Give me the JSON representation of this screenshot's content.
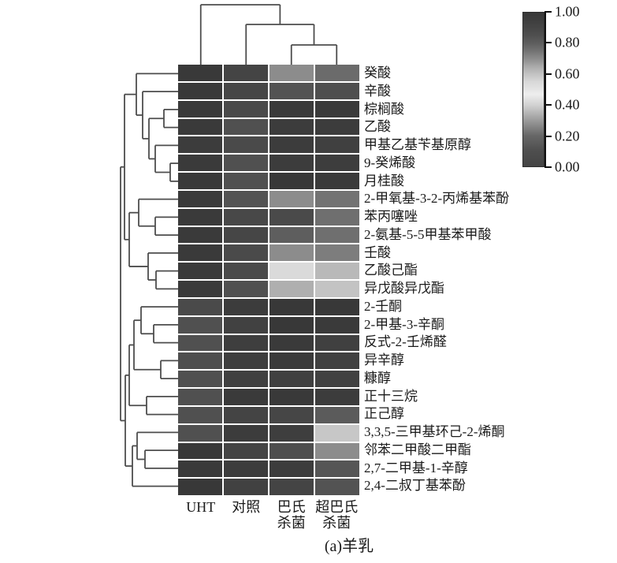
{
  "figure": {
    "caption": "(a)羊乳"
  },
  "chart_data": {
    "type": "heatmap",
    "title": "",
    "columns": [
      {
        "label": "UHT",
        "lines": [
          "UHT"
        ]
      },
      {
        "label": "对照",
        "lines": [
          "对照"
        ]
      },
      {
        "label": "巴氏杀菌",
        "lines": [
          "巴氏",
          "杀菌"
        ]
      },
      {
        "label": "超巴氏杀菌",
        "lines": [
          "超巴氏",
          "杀菌"
        ]
      }
    ],
    "rows": [
      "癸酸",
      "辛酸",
      "棕榈酸",
      "乙酸",
      "甲基乙基苄基原醇",
      "9-癸烯酸",
      "月桂酸",
      "2-甲氧基-3-2-丙烯基苯酚",
      "苯丙噻唑",
      "2-氨基-5-5甲基苯甲酸",
      "壬酸",
      "乙酸己酯",
      "异戊酸异戊酯",
      "2-壬酮",
      "2-甲基-3-辛酮",
      "反式-2-壬烯醛",
      "异辛醇",
      "糠醇",
      "正十三烷",
      "正己醇",
      "3,3,5-三甲基环己-2-烯酮",
      "邻苯二甲酸二甲酯",
      "2,7-二甲基-1-辛醇",
      "2,4-二叔丁基苯酚"
    ],
    "values": [
      [
        0.99,
        0.91,
        0.7,
        0.77
      ],
      [
        0.99,
        0.9,
        0.84,
        0.86
      ],
      [
        0.98,
        0.88,
        0.98,
        0.98
      ],
      [
        0.98,
        0.85,
        0.97,
        0.97
      ],
      [
        0.97,
        0.88,
        0.97,
        0.94
      ],
      [
        0.98,
        0.85,
        0.97,
        0.96
      ],
      [
        0.99,
        0.85,
        1.0,
        0.98
      ],
      [
        0.98,
        0.84,
        0.7,
        0.75
      ],
      [
        0.98,
        0.89,
        0.88,
        0.76
      ],
      [
        0.98,
        0.9,
        0.8,
        0.76
      ],
      [
        0.98,
        0.88,
        0.7,
        0.73
      ],
      [
        0.98,
        0.88,
        0.54,
        0.62
      ],
      [
        0.98,
        0.85,
        0.64,
        0.6
      ],
      [
        0.88,
        0.97,
        1.0,
        1.0
      ],
      [
        0.85,
        0.93,
        1.0,
        0.98
      ],
      [
        0.85,
        0.95,
        0.98,
        0.94
      ],
      [
        0.86,
        0.95,
        0.98,
        0.94
      ],
      [
        0.85,
        0.94,
        0.94,
        0.93
      ],
      [
        0.85,
        0.98,
        0.99,
        0.97
      ],
      [
        0.85,
        0.91,
        0.9,
        0.81
      ],
      [
        0.85,
        0.97,
        0.95,
        0.59
      ],
      [
        1.0,
        0.91,
        0.86,
        0.7
      ],
      [
        0.98,
        0.97,
        0.97,
        0.83
      ],
      [
        1.0,
        0.93,
        0.91,
        0.84
      ]
    ],
    "value_range": [
      0,
      1
    ],
    "grid": false,
    "legend_position": "right-colorbar",
    "colorbar": {
      "ticks": [
        "1.00",
        "0.80",
        "0.60",
        "0.40",
        "0.20",
        "0.00"
      ],
      "tick_values": [
        1.0,
        0.8,
        0.6,
        0.4,
        0.2,
        0.0
      ],
      "min": 0.0,
      "max": 1.0
    },
    "colormap_stops": [
      [
        0.0,
        "#444444"
      ],
      [
        0.1,
        "#4e4e4e"
      ],
      [
        0.2,
        "#676767"
      ],
      [
        0.3,
        "#9b9b9b"
      ],
      [
        0.4,
        "#d2d2d2"
      ],
      [
        0.47,
        "#eeeeee"
      ],
      [
        0.5,
        "#e4e4e4"
      ],
      [
        0.55,
        "#d8d8d8"
      ],
      [
        0.6,
        "#c3c3c3"
      ],
      [
        0.65,
        "#aaaaaa"
      ],
      [
        0.7,
        "#8c8c8c"
      ],
      [
        0.75,
        "#737373"
      ],
      [
        0.8,
        "#5e5e5e"
      ],
      [
        0.85,
        "#505050"
      ],
      [
        0.9,
        "#464646"
      ],
      [
        0.95,
        "#3e3e3e"
      ],
      [
        1.0,
        "#383838"
      ]
    ],
    "dendrogram_color": "#4d4d4d",
    "col_dendrogram": {
      "d": 76,
      "c": [
        0,
        {
          "d": 51,
          "c": [
            1,
            {
              "d": 25,
              "c": [
                2,
                3
              ]
            }
          ]
        }
      ]
    },
    "row_dendrogram": {
      "d": 73,
      "c": [
        {
          "d": 68,
          "c": [
            {
              "d": 53,
              "c": [
                0,
                {
                  "d": 45,
                  "c": [
                    1,
                    {
                      "d": 37,
                      "c": [
                        {
                          "d": 18,
                          "c": [
                            2,
                            3
                          ]
                        },
                        {
                          "d": 29,
                          "c": [
                            4,
                            {
                              "d": 10,
                              "c": [
                                5,
                                6
                              ]
                            }
                          ]
                        }
                      ]
                    }
                  ]
                }
              ]
            },
            {
              "d": 62,
              "c": [
                {
                  "d": 50,
                  "c": [
                    7,
                    {
                      "d": 29,
                      "c": [
                        8,
                        9
                      ]
                    }
                  ]
                },
                {
                  "d": 38,
                  "c": [
                    10,
                    {
                      "d": 28,
                      "c": [
                        11,
                        12
                      ]
                    }
                  ]
                }
              ]
            }
          ]
        },
        {
          "d": 67,
          "c": [
            {
              "d": 62,
              "c": [
                {
                  "d": 56,
                  "c": [
                    {
                      "d": 47,
                      "c": [
                        13,
                        {
                          "d": 31,
                          "c": [
                            14,
                            15
                          ]
                        }
                      ]
                    },
                    {
                      "d": 22,
                      "c": [
                        16,
                        17
                      ]
                    }
                  ]
                },
                {
                  "d": 40,
                  "c": [
                    18,
                    19
                  ]
                }
              ]
            },
            {
              "d": 58,
              "c": [
                {
                  "d": 52,
                  "c": [
                    20,
                    {
                      "d": 42,
                      "c": [
                        21,
                        22
                      ]
                    }
                  ]
                },
                23
              ]
            }
          ]
        }
      ]
    }
  }
}
